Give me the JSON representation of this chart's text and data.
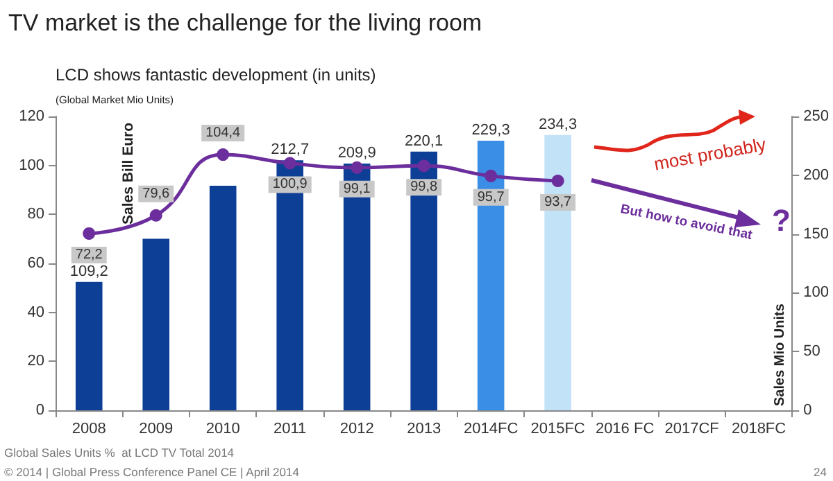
{
  "chart_data": {
    "type": "bar",
    "title": "TV market is the challenge for the living room",
    "subtitle": "LCD shows fantastic development (in units)",
    "ylabel": "Sales Bill Euro",
    "y2label": "Sales Mio Units",
    "annotations": [
      "(Global Market Mio Units)",
      "most probably",
      "But how to avoid that",
      "?",
      "Global Sales Units %  at LCD TV Total 2014",
      "© 2014 | Global Press Conference Panel CE | April 2014",
      "24"
    ],
    "categories": [
      "2008",
      "2009",
      "2010",
      "2011",
      "2012",
      "2013",
      "2014FC",
      "2015FC",
      "2016 FC",
      "2017CF",
      "2018FC"
    ],
    "series": [
      {
        "axis": "y2",
        "colors": [
          "#0d3f96",
          "#0d3f96",
          "#0d3f96",
          "#0d3f96",
          "#0d3f96",
          "#0d3f96",
          "#3a8ee6",
          "#c2e2f8",
          null,
          null,
          null
        ],
        "values": [
          109.2,
          146,
          191,
          212.7,
          209.9,
          220.1,
          229.3,
          234.3,
          null,
          null,
          null
        ],
        "value_labels": [
          "109,2",
          null,
          null,
          "212,7",
          "209,9",
          "220,1",
          "229,3",
          "234,3",
          null,
          null,
          null
        ]
      },
      {
        "type": "line",
        "color": "#6b2e9c",
        "marker": "circle",
        "values": [
          72.2,
          79.6,
          104.4,
          100.9,
          99.1,
          99.8,
          95.7,
          93.7,
          null,
          null,
          null
        ],
        "value_labels": [
          "72,2",
          "79,6",
          "104,4",
          "100,9",
          "99,1",
          "99,8",
          "95,7",
          "93,7",
          null,
          null,
          null
        ]
      }
    ],
    "ylim": [
      0,
      120
    ],
    "yticks": [
      0,
      20,
      40,
      60,
      80,
      100,
      120
    ],
    "y2lim": [
      0,
      250
    ],
    "y2ticks": [
      0,
      50,
      100,
      150,
      200,
      250
    ],
    "grid": false
  }
}
